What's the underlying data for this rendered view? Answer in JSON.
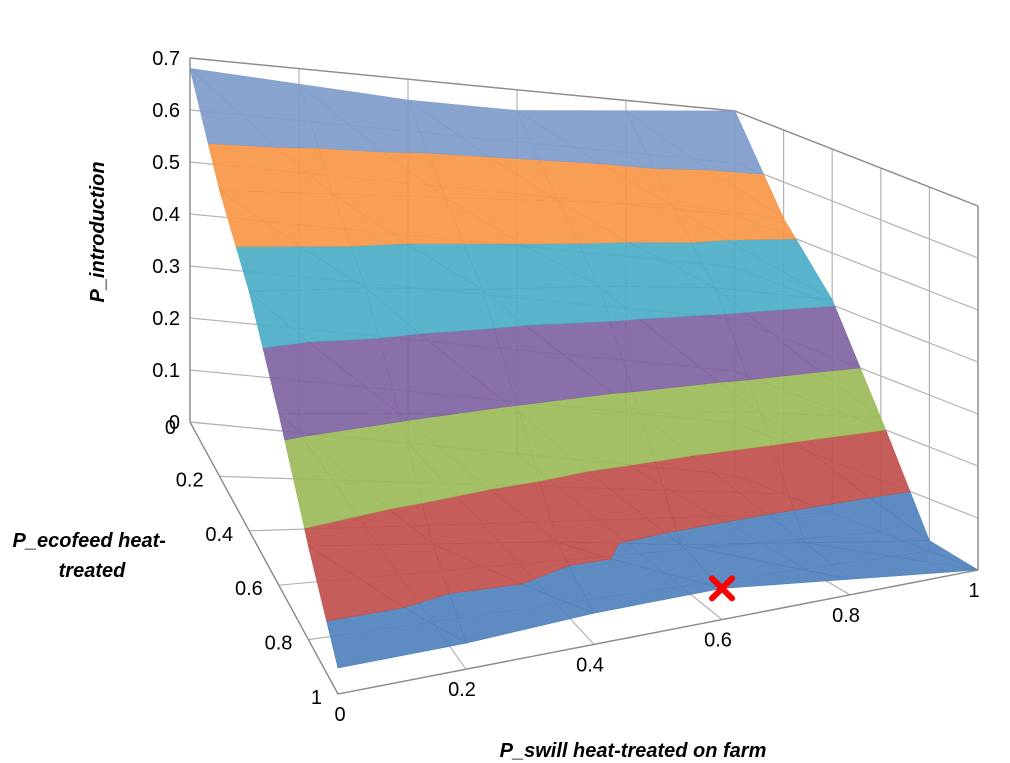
{
  "chart_data": {
    "type": "surface",
    "title": "",
    "xlabel": "P_swill heat-treated on farm",
    "ylabel": "P_ecofeed heat-\ntreated",
    "zlabel": "P_introduction",
    "x_ticks": [
      "0",
      "0.2",
      "0.4",
      "0.6",
      "0.8",
      "1"
    ],
    "y_ticks": [
      "0",
      "0.2",
      "0.4",
      "0.6",
      "0.8",
      "1"
    ],
    "z_ticks": [
      "0",
      "0.1",
      "0.2",
      "0.3",
      "0.4",
      "0.5",
      "0.6",
      "0.7"
    ],
    "x": [
      0,
      0.2,
      0.4,
      0.6,
      0.8,
      1
    ],
    "y": [
      0,
      0.2,
      0.4,
      0.6,
      0.8,
      1
    ],
    "z": [
      [
        0.68,
        0.67,
        0.66,
        0.66,
        0.68,
        0.7
      ],
      [
        0.55,
        0.55,
        0.55,
        0.55,
        0.55,
        0.53
      ],
      [
        0.46,
        0.46,
        0.45,
        0.45,
        0.44,
        0.41
      ],
      [
        0.33,
        0.31,
        0.29,
        0.27,
        0.25,
        0.22
      ],
      [
        0.18,
        0.15,
        0.12,
        0.08,
        0.05,
        0.02
      ],
      [
        0.05,
        0.05,
        0.06,
        0.06,
        0.03,
        0.0
      ]
    ],
    "xlim": [
      0,
      1
    ],
    "ylim": [
      0,
      1
    ],
    "zlim": [
      0,
      0.7
    ],
    "color_bands": [
      {
        "range": [
          0,
          0.1
        ],
        "color": "#4F81BD"
      },
      {
        "range": [
          0.1,
          0.2
        ],
        "color": "#C0504D"
      },
      {
        "range": [
          0.2,
          0.3
        ],
        "color": "#9BBB59"
      },
      {
        "range": [
          0.3,
          0.4
        ],
        "color": "#8064A2"
      },
      {
        "range": [
          0.4,
          0.5
        ],
        "color": "#4BACC6"
      },
      {
        "range": [
          0.5,
          0.6
        ],
        "color": "#F79646"
      },
      {
        "range": [
          0.6,
          0.7
        ],
        "color": "#7F9BCB"
      }
    ],
    "marker": {
      "x": 0.6,
      "y": 1,
      "z": 0.06,
      "symbol": "cross",
      "color": "#FF0000"
    },
    "grid": true,
    "legend": "none"
  }
}
